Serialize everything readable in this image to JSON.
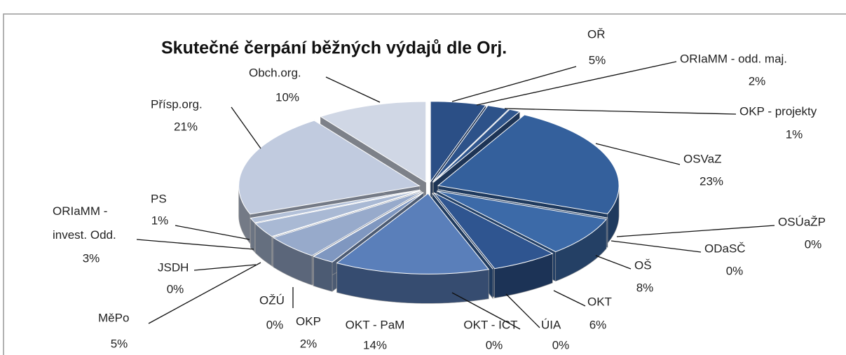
{
  "chart_data": {
    "type": "pie",
    "title": "Skutečné čerpání běžných výdajů dle Orj.",
    "categories": [
      "OŘ",
      "ORIaMM - odd. maj.",
      "OKP - projekty",
      "OSVaZ",
      "OSÚaŽP",
      "ODaSČ",
      "OŠ",
      "OKT",
      "ÚIA",
      "OKT - ICT",
      "OKT - PaM",
      "OKP",
      "OŽÚ",
      "MěPo",
      "JSDH",
      "ORIaMM - invest. Odd.",
      "PS",
      "Přísp.org.",
      "Obch.org."
    ],
    "values": [
      5,
      2,
      1,
      23,
      0,
      0,
      8,
      6,
      0,
      0,
      14,
      2,
      0,
      5,
      0,
      3,
      1,
      21,
      10
    ],
    "value_labels": [
      "5%",
      "2%",
      "1%",
      "23%",
      "0%",
      "0%",
      "8%",
      "6%",
      "0%",
      "0%",
      "14%",
      "2%",
      "0%",
      "5%",
      "0%",
      "3%",
      "1%",
      "21%",
      "10%"
    ],
    "colors": [
      "#2b4f86",
      "#2d5289",
      "#30568d",
      "#34609c",
      "#3a68a6",
      "#3a68a6",
      "#3c6aa8",
      "#2f5590",
      "#2f5590",
      "#34609c",
      "#5a7fba",
      "#7f97c0",
      "#8ea3c7",
      "#97aacb",
      "#9fb1cf",
      "#a9b9d4",
      "#b3c1d9",
      "#c1cbdf",
      "#d0d7e5"
    ]
  }
}
